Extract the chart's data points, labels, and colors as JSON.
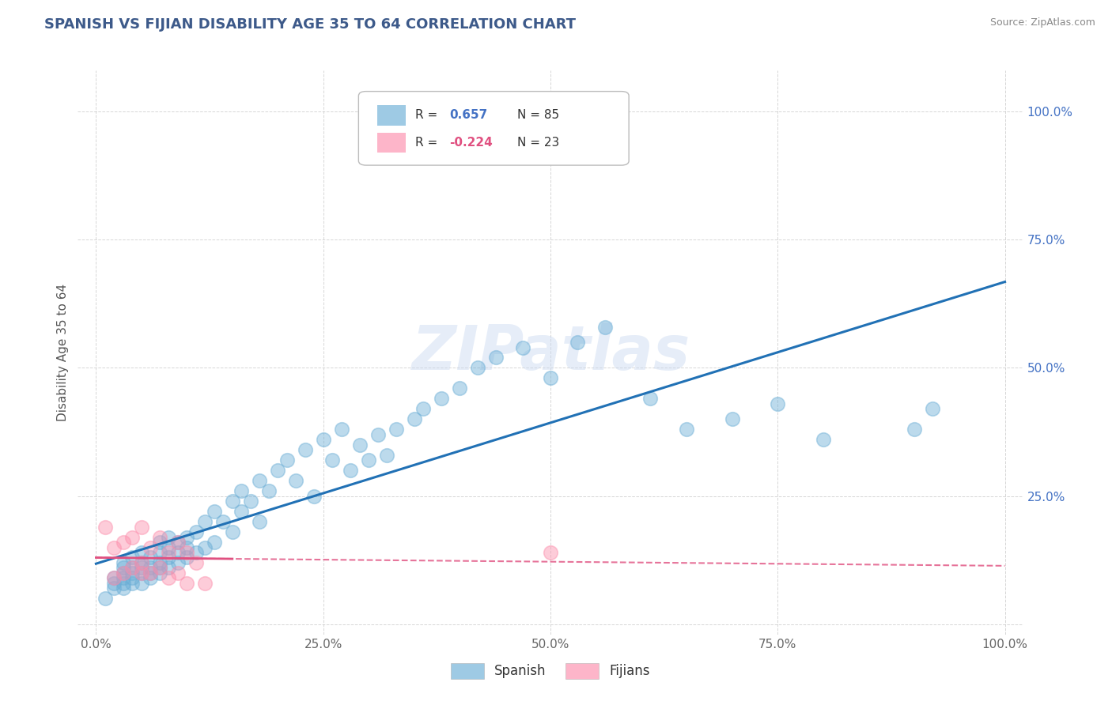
{
  "title": "SPANISH VS FIJIAN DISABILITY AGE 35 TO 64 CORRELATION CHART",
  "source": "Source: ZipAtlas.com",
  "ylabel": "Disability Age 35 to 64",
  "xlim": [
    -0.02,
    1.02
  ],
  "ylim": [
    -0.02,
    1.08
  ],
  "xticks": [
    0.0,
    0.25,
    0.5,
    0.75,
    1.0
  ],
  "xticklabels": [
    "0.0%",
    "25.0%",
    "50.0%",
    "75.0%",
    "100.0%"
  ],
  "yticks": [
    0.0,
    0.25,
    0.5,
    0.75,
    1.0
  ],
  "yticklabels": [
    "",
    "25.0%",
    "50.0%",
    "75.0%",
    "100.0%"
  ],
  "spanish_R": 0.657,
  "spanish_N": 85,
  "fijian_R": -0.224,
  "fijian_N": 23,
  "spanish_color": "#6baed6",
  "fijian_color": "#fc8eac",
  "spanish_line_color": "#2171b5",
  "fijian_line_color": "#e05080",
  "watermark": "ZIPatlas",
  "title_color": "#3d5a8a",
  "title_fontsize": 13,
  "spanish_x": [
    0.01,
    0.02,
    0.02,
    0.02,
    0.03,
    0.03,
    0.03,
    0.03,
    0.03,
    0.03,
    0.04,
    0.04,
    0.04,
    0.04,
    0.04,
    0.05,
    0.05,
    0.05,
    0.05,
    0.05,
    0.06,
    0.06,
    0.06,
    0.06,
    0.07,
    0.07,
    0.07,
    0.07,
    0.07,
    0.08,
    0.08,
    0.08,
    0.08,
    0.09,
    0.09,
    0.09,
    0.1,
    0.1,
    0.1,
    0.11,
    0.11,
    0.12,
    0.12,
    0.13,
    0.13,
    0.14,
    0.15,
    0.15,
    0.16,
    0.16,
    0.17,
    0.18,
    0.18,
    0.19,
    0.2,
    0.21,
    0.22,
    0.23,
    0.24,
    0.25,
    0.26,
    0.27,
    0.28,
    0.29,
    0.3,
    0.31,
    0.32,
    0.33,
    0.35,
    0.36,
    0.38,
    0.4,
    0.42,
    0.44,
    0.47,
    0.5,
    0.53,
    0.56,
    0.61,
    0.65,
    0.7,
    0.75,
    0.8,
    0.9,
    0.92
  ],
  "spanish_y": [
    0.05,
    0.07,
    0.08,
    0.09,
    0.07,
    0.08,
    0.09,
    0.1,
    0.11,
    0.12,
    0.08,
    0.09,
    0.1,
    0.11,
    0.13,
    0.08,
    0.1,
    0.11,
    0.12,
    0.14,
    0.09,
    0.1,
    0.11,
    0.13,
    0.1,
    0.11,
    0.12,
    0.14,
    0.16,
    0.11,
    0.13,
    0.15,
    0.17,
    0.12,
    0.14,
    0.16,
    0.13,
    0.15,
    0.17,
    0.14,
    0.18,
    0.15,
    0.2,
    0.16,
    0.22,
    0.2,
    0.18,
    0.24,
    0.22,
    0.26,
    0.24,
    0.2,
    0.28,
    0.26,
    0.3,
    0.32,
    0.28,
    0.34,
    0.25,
    0.36,
    0.32,
    0.38,
    0.3,
    0.35,
    0.32,
    0.37,
    0.33,
    0.38,
    0.4,
    0.42,
    0.44,
    0.46,
    0.5,
    0.52,
    0.54,
    0.48,
    0.55,
    0.58,
    0.44,
    0.38,
    0.4,
    0.43,
    0.36,
    0.38,
    0.42
  ],
  "fijian_x": [
    0.01,
    0.02,
    0.02,
    0.03,
    0.03,
    0.04,
    0.04,
    0.05,
    0.05,
    0.05,
    0.06,
    0.06,
    0.07,
    0.07,
    0.08,
    0.08,
    0.09,
    0.09,
    0.1,
    0.1,
    0.11,
    0.12,
    0.5
  ],
  "fijian_y": [
    0.19,
    0.09,
    0.15,
    0.1,
    0.16,
    0.11,
    0.17,
    0.1,
    0.12,
    0.19,
    0.1,
    0.15,
    0.11,
    0.17,
    0.09,
    0.14,
    0.1,
    0.16,
    0.08,
    0.14,
    0.12,
    0.08,
    0.14
  ]
}
